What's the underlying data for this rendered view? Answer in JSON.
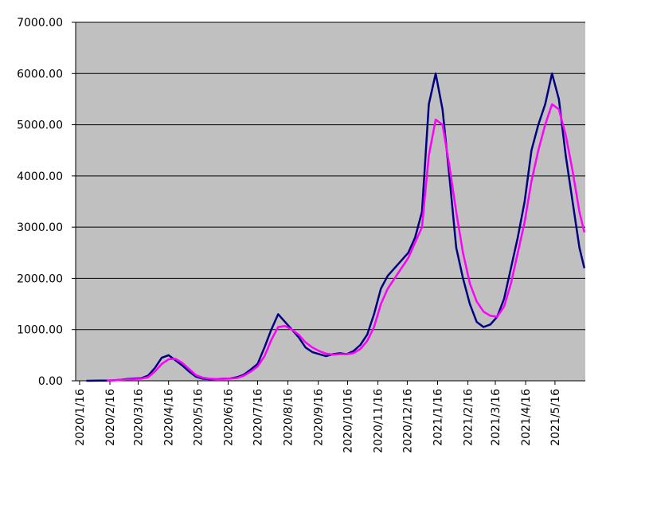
{
  "chart_data": {
    "type": "line",
    "x": [
      "2020/1/16",
      "2020/1/23",
      "2020/1/30",
      "2020/2/6",
      "2020/2/13",
      "2020/2/20",
      "2020/2/27",
      "2020/3/5",
      "2020/3/12",
      "2020/3/19",
      "2020/3/26",
      "2020/4/2",
      "2020/4/9",
      "2020/4/16",
      "2020/4/23",
      "2020/4/30",
      "2020/5/7",
      "2020/5/14",
      "2020/5/21",
      "2020/5/28",
      "2020/6/4",
      "2020/6/11",
      "2020/6/18",
      "2020/6/25",
      "2020/7/2",
      "2020/7/9",
      "2020/7/16",
      "2020/7/23",
      "2020/7/30",
      "2020/8/6",
      "2020/8/13",
      "2020/8/20",
      "2020/8/27",
      "2020/9/3",
      "2020/9/10",
      "2020/9/17",
      "2020/9/24",
      "2020/10/1",
      "2020/10/8",
      "2020/10/15",
      "2020/10/22",
      "2020/10/29",
      "2020/11/5",
      "2020/11/12",
      "2020/11/19",
      "2020/11/26",
      "2020/12/3",
      "2020/12/10",
      "2020/12/17",
      "2020/12/24",
      "2020/12/31",
      "2021/1/7",
      "2021/1/14",
      "2021/1/21",
      "2021/1/28",
      "2021/2/4",
      "2021/2/11",
      "2021/2/18",
      "2021/2/25",
      "2021/3/4",
      "2021/3/11",
      "2021/3/18",
      "2021/3/25",
      "2021/4/1",
      "2021/4/8",
      "2021/4/15",
      "2021/4/22",
      "2021/4/29",
      "2021/5/6",
      "2021/5/13",
      "2021/5/20",
      "2021/5/27",
      "2021/6/3",
      "2021/6/10",
      "2021/6/15"
    ],
    "series": [
      {
        "color": "#000080",
        "values": [
          null,
          0,
          2,
          3,
          5,
          10,
          20,
          35,
          45,
          50,
          100,
          250,
          450,
          500,
          400,
          300,
          180,
          80,
          40,
          30,
          35,
          40,
          45,
          70,
          120,
          220,
          330,
          650,
          1000,
          1300,
          1150,
          1000,
          850,
          650,
          560,
          520,
          480,
          520,
          540,
          520,
          580,
          700,
          900,
          1300,
          1800,
          2050,
          2200,
          2350,
          2500,
          2800,
          3300,
          5400,
          6000,
          5300,
          4000,
          2600,
          2000,
          1500,
          1150,
          1050,
          1100,
          1250,
          1600,
          2200,
          2800,
          3500,
          4500,
          5000,
          5400,
          6000,
          5500,
          4400,
          3500,
          2600,
          2200
        ]
      },
      {
        "color": "#ff00ff",
        "values": [
          null,
          null,
          null,
          null,
          5,
          8,
          15,
          25,
          35,
          40,
          70,
          180,
          330,
          420,
          430,
          350,
          230,
          110,
          60,
          40,
          35,
          38,
          42,
          55,
          100,
          180,
          280,
          480,
          800,
          1050,
          1070,
          1000,
          900,
          750,
          650,
          580,
          530,
          510,
          520,
          520,
          540,
          620,
          780,
          1050,
          1500,
          1800,
          2000,
          2200,
          2400,
          2700,
          3000,
          4400,
          5100,
          5000,
          4200,
          3300,
          2500,
          1900,
          1550,
          1350,
          1270,
          1250,
          1450,
          1900,
          2500,
          3100,
          3900,
          4500,
          5000,
          5400,
          5300,
          4800,
          4100,
          3300,
          2900
        ]
      }
    ],
    "xlim": [
      "2020/1/12",
      "2021/6/16"
    ],
    "xticks": [
      "2020/1/16",
      "2020/2/16",
      "2020/3/16",
      "2020/4/16",
      "2020/5/16",
      "2020/6/16",
      "2020/7/16",
      "2020/8/16",
      "2020/9/16",
      "2020/10/16",
      "2020/11/16",
      "2020/12/16",
      "2021/1/16",
      "2021/2/16",
      "2021/3/16",
      "2021/4/16",
      "2021/5/16"
    ],
    "ylim": [
      0,
      7000
    ],
    "yticks": [
      {
        "value": 0,
        "label": "0.00"
      },
      {
        "value": 1000,
        "label": "1000.00"
      },
      {
        "value": 2000,
        "label": "2000.00"
      },
      {
        "value": 3000,
        "label": "3000.00"
      },
      {
        "value": 4000,
        "label": "4000.00"
      },
      {
        "value": 5000,
        "label": "5000.00"
      },
      {
        "value": 6000,
        "label": "6000.00"
      },
      {
        "value": 7000,
        "label": "7000.00"
      }
    ],
    "grid": true
  }
}
